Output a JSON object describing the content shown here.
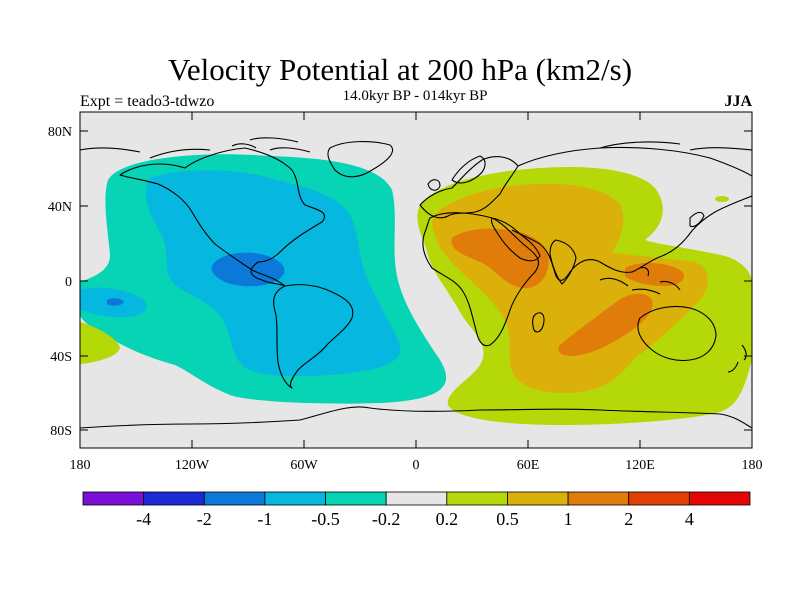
{
  "title": "Velocity Potential at 200 hPa (km2/s)",
  "experiment_label": "Expt = teado3-tdwzo",
  "period_label": "14.0kyr BP - 014kyr BP",
  "season_label": "JJA",
  "map": {
    "lat_ticks": [
      "80N",
      "40N",
      "0",
      "40S",
      "80S"
    ],
    "lon_ticks": [
      "180",
      "120W",
      "60W",
      "0",
      "60E",
      "120E",
      "180"
    ],
    "background_color": "#e6e6e6",
    "coastline_color": "#000000"
  },
  "colorbar": {
    "colors": [
      "#7a10d8",
      "#1c2ad6",
      "#0c78d8",
      "#06b8e0",
      "#06d4b4",
      "#e6e6e6",
      "#b4d808",
      "#dcb00a",
      "#e07c0a",
      "#e04004",
      "#e40606"
    ],
    "labels": [
      "-4",
      "-2",
      "-1",
      "-0.5",
      "-0.2",
      "0.2",
      "0.5",
      "1",
      "2",
      "4"
    ]
  },
  "chart_data": {
    "type": "heatmap",
    "variable": "Velocity Potential at 200 hPa",
    "units": "km2/s",
    "season": "JJA",
    "levels": [
      -4,
      -2,
      -1,
      -0.5,
      -0.2,
      0.2,
      0.5,
      1,
      2,
      4
    ],
    "regions": [
      {
        "name": "Pacific-Americas negative centre",
        "lon_range": [
          -160,
          -20
        ],
        "lat_range": [
          -60,
          70
        ],
        "max_level": "-0.5 to -0.2"
      },
      {
        "name": "Central America minimum",
        "lon_range": [
          -110,
          -80
        ],
        "lat_range": [
          -5,
          15
        ],
        "max_level": "-1 to -0.5"
      },
      {
        "name": "Africa-Asia positive centre",
        "lon_range": [
          10,
          160
        ],
        "lat_range": [
          -70,
          60
        ],
        "max_level": "0.5 to 1"
      },
      {
        "name": "Arabian Sea maximum",
        "lon_range": [
          40,
          75
        ],
        "lat_range": [
          5,
          30
        ],
        "max_level": "1 to 2"
      },
      {
        "name": "Indian Ocean maximum",
        "lon_range": [
          85,
          120
        ],
        "lat_range": [
          -35,
          -5
        ],
        "max_level": "1 to 2"
      }
    ]
  }
}
